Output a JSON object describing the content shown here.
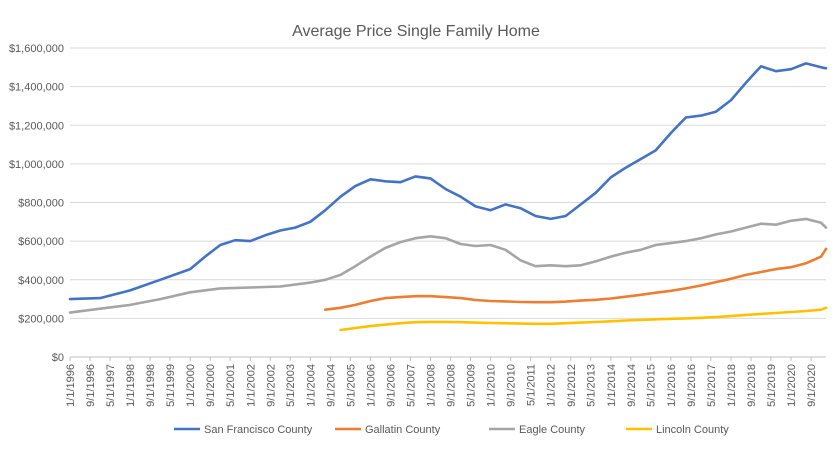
{
  "chart_data": {
    "type": "line",
    "title": "Average Price Single Family Home",
    "xlabel": "",
    "ylabel": "",
    "ylim": [
      0,
      1600000
    ],
    "yticks": [
      "$0",
      "$200,000",
      "$400,000",
      "$600,000",
      "$800,000",
      "$1,000,000",
      "$1,200,000",
      "$1,400,000",
      "$1,600,000"
    ],
    "xticks": [
      "1/1/1996",
      "9/1/1996",
      "5/1/1997",
      "1/1/1998",
      "9/1/1998",
      "5/1/1999",
      "1/1/2000",
      "9/1/2000",
      "5/1/2001",
      "1/1/2002",
      "9/1/2002",
      "5/1/2003",
      "1/1/2004",
      "9/1/2004",
      "5/1/2005",
      "1/1/2006",
      "9/1/2006",
      "5/1/2007",
      "1/1/2008",
      "9/1/2008",
      "5/1/2009",
      "1/1/2010",
      "9/1/2010",
      "5/1/2011",
      "1/1/2012",
      "9/1/2012",
      "5/1/2013",
      "1/1/2014",
      "9/1/2014",
      "5/1/2015",
      "1/1/2016",
      "9/1/2016",
      "5/1/2017",
      "1/1/2018",
      "9/1/2018",
      "5/1/2019",
      "1/1/2020",
      "9/1/2020"
    ],
    "xrange": [
      "1/1/1996",
      "3/1/2021"
    ],
    "grid": true,
    "legend": "bottom",
    "series": [
      {
        "name": "San Francisco County",
        "color": "#4472C4",
        "points": [
          [
            "1/1/1996",
            300000
          ],
          [
            "1/1/1997",
            305000
          ],
          [
            "1/1/1998",
            345000
          ],
          [
            "1/1/1999",
            400000
          ],
          [
            "1/1/2000",
            455000
          ],
          [
            "7/1/2000",
            520000
          ],
          [
            "1/1/2001",
            580000
          ],
          [
            "7/1/2001",
            605000
          ],
          [
            "1/1/2002",
            600000
          ],
          [
            "7/1/2002",
            630000
          ],
          [
            "1/1/2003",
            655000
          ],
          [
            "7/1/2003",
            670000
          ],
          [
            "1/1/2004",
            700000
          ],
          [
            "7/1/2004",
            760000
          ],
          [
            "1/1/2005",
            830000
          ],
          [
            "7/1/2005",
            885000
          ],
          [
            "1/1/2006",
            920000
          ],
          [
            "7/1/2006",
            910000
          ],
          [
            "1/1/2007",
            905000
          ],
          [
            "7/1/2007",
            935000
          ],
          [
            "1/1/2008",
            925000
          ],
          [
            "7/1/2008",
            870000
          ],
          [
            "1/1/2009",
            830000
          ],
          [
            "7/1/2009",
            780000
          ],
          [
            "1/1/2010",
            760000
          ],
          [
            "7/1/2010",
            790000
          ],
          [
            "1/1/2011",
            770000
          ],
          [
            "7/1/2011",
            730000
          ],
          [
            "1/1/2012",
            715000
          ],
          [
            "7/1/2012",
            730000
          ],
          [
            "1/1/2013",
            790000
          ],
          [
            "7/1/2013",
            850000
          ],
          [
            "1/1/2014",
            930000
          ],
          [
            "7/1/2014",
            980000
          ],
          [
            "1/1/2015",
            1025000
          ],
          [
            "7/1/2015",
            1070000
          ],
          [
            "1/1/2016",
            1160000
          ],
          [
            "7/1/2016",
            1240000
          ],
          [
            "1/1/2017",
            1250000
          ],
          [
            "7/1/2017",
            1270000
          ],
          [
            "1/1/2018",
            1330000
          ],
          [
            "7/1/2018",
            1420000
          ],
          [
            "1/1/2019",
            1505000
          ],
          [
            "7/1/2019",
            1480000
          ],
          [
            "1/1/2020",
            1490000
          ],
          [
            "7/1/2020",
            1520000
          ],
          [
            "1/1/2021",
            1500000
          ],
          [
            "3/1/2021",
            1495000
          ]
        ]
      },
      {
        "name": "Gallatin County",
        "color": "#ED7D31",
        "points": [
          [
            "7/1/2004",
            245000
          ],
          [
            "1/1/2005",
            255000
          ],
          [
            "7/1/2005",
            270000
          ],
          [
            "1/1/2006",
            290000
          ],
          [
            "7/1/2006",
            305000
          ],
          [
            "1/1/2007",
            310000
          ],
          [
            "7/1/2007",
            315000
          ],
          [
            "1/1/2008",
            315000
          ],
          [
            "7/1/2008",
            310000
          ],
          [
            "1/1/2009",
            305000
          ],
          [
            "7/1/2009",
            295000
          ],
          [
            "1/1/2010",
            290000
          ],
          [
            "7/1/2010",
            288000
          ],
          [
            "1/1/2011",
            285000
          ],
          [
            "7/1/2011",
            284000
          ],
          [
            "1/1/2012",
            284000
          ],
          [
            "7/1/2012",
            287000
          ],
          [
            "1/1/2013",
            292000
          ],
          [
            "7/1/2013",
            296000
          ],
          [
            "1/1/2014",
            303000
          ],
          [
            "7/1/2014",
            312000
          ],
          [
            "1/1/2015",
            322000
          ],
          [
            "7/1/2015",
            333000
          ],
          [
            "1/1/2016",
            343000
          ],
          [
            "7/1/2016",
            355000
          ],
          [
            "1/1/2017",
            370000
          ],
          [
            "7/1/2017",
            388000
          ],
          [
            "1/1/2018",
            405000
          ],
          [
            "7/1/2018",
            425000
          ],
          [
            "1/1/2019",
            440000
          ],
          [
            "7/1/2019",
            455000
          ],
          [
            "1/1/2020",
            465000
          ],
          [
            "7/1/2020",
            485000
          ],
          [
            "1/1/2021",
            520000
          ],
          [
            "3/1/2021",
            560000
          ]
        ]
      },
      {
        "name": "Eagle County",
        "color": "#A5A5A5",
        "points": [
          [
            "1/1/1996",
            230000
          ],
          [
            "1/1/1997",
            250000
          ],
          [
            "1/1/1998",
            270000
          ],
          [
            "1/1/1999",
            300000
          ],
          [
            "1/1/2000",
            335000
          ],
          [
            "1/1/2001",
            355000
          ],
          [
            "1/1/2002",
            360000
          ],
          [
            "1/1/2003",
            365000
          ],
          [
            "1/1/2004",
            385000
          ],
          [
            "7/1/2004",
            400000
          ],
          [
            "1/1/2005",
            425000
          ],
          [
            "7/1/2005",
            470000
          ],
          [
            "1/1/2006",
            520000
          ],
          [
            "7/1/2006",
            565000
          ],
          [
            "1/1/2007",
            595000
          ],
          [
            "7/1/2007",
            615000
          ],
          [
            "1/1/2008",
            625000
          ],
          [
            "7/1/2008",
            615000
          ],
          [
            "1/1/2009",
            585000
          ],
          [
            "7/1/2009",
            575000
          ],
          [
            "1/1/2010",
            580000
          ],
          [
            "7/1/2010",
            555000
          ],
          [
            "1/1/2011",
            500000
          ],
          [
            "7/1/2011",
            470000
          ],
          [
            "1/1/2012",
            475000
          ],
          [
            "7/1/2012",
            470000
          ],
          [
            "1/1/2013",
            475000
          ],
          [
            "7/1/2013",
            495000
          ],
          [
            "1/1/2014",
            520000
          ],
          [
            "7/1/2014",
            540000
          ],
          [
            "1/1/2015",
            555000
          ],
          [
            "7/1/2015",
            580000
          ],
          [
            "1/1/2016",
            590000
          ],
          [
            "7/1/2016",
            600000
          ],
          [
            "1/1/2017",
            615000
          ],
          [
            "7/1/2017",
            635000
          ],
          [
            "1/1/2018",
            650000
          ],
          [
            "7/1/2018",
            670000
          ],
          [
            "1/1/2019",
            690000
          ],
          [
            "7/1/2019",
            685000
          ],
          [
            "1/1/2020",
            705000
          ],
          [
            "7/1/2020",
            715000
          ],
          [
            "1/1/2021",
            695000
          ],
          [
            "3/1/2021",
            670000
          ]
        ]
      },
      {
        "name": "Lincoln County",
        "color": "#FFC000",
        "points": [
          [
            "1/1/2005",
            140000
          ],
          [
            "7/1/2005",
            150000
          ],
          [
            "1/1/2006",
            160000
          ],
          [
            "7/1/2006",
            168000
          ],
          [
            "1/1/2007",
            175000
          ],
          [
            "7/1/2007",
            180000
          ],
          [
            "1/1/2008",
            182000
          ],
          [
            "7/1/2008",
            182000
          ],
          [
            "1/1/2009",
            180000
          ],
          [
            "7/1/2009",
            178000
          ],
          [
            "1/1/2010",
            176000
          ],
          [
            "7/1/2010",
            175000
          ],
          [
            "1/1/2011",
            173000
          ],
          [
            "7/1/2011",
            172000
          ],
          [
            "1/1/2012",
            172000
          ],
          [
            "7/1/2012",
            175000
          ],
          [
            "1/1/2013",
            178000
          ],
          [
            "7/1/2013",
            181000
          ],
          [
            "1/1/2014",
            185000
          ],
          [
            "7/1/2014",
            189000
          ],
          [
            "1/1/2015",
            192000
          ],
          [
            "7/1/2015",
            195000
          ],
          [
            "1/1/2016",
            198000
          ],
          [
            "7/1/2016",
            200000
          ],
          [
            "1/1/2017",
            203000
          ],
          [
            "7/1/2017",
            207000
          ],
          [
            "1/1/2018",
            212000
          ],
          [
            "7/1/2018",
            218000
          ],
          [
            "1/1/2019",
            223000
          ],
          [
            "7/1/2019",
            228000
          ],
          [
            "1/1/2020",
            233000
          ],
          [
            "7/1/2020",
            238000
          ],
          [
            "1/1/2021",
            245000
          ],
          [
            "3/1/2021",
            255000
          ]
        ]
      }
    ]
  }
}
